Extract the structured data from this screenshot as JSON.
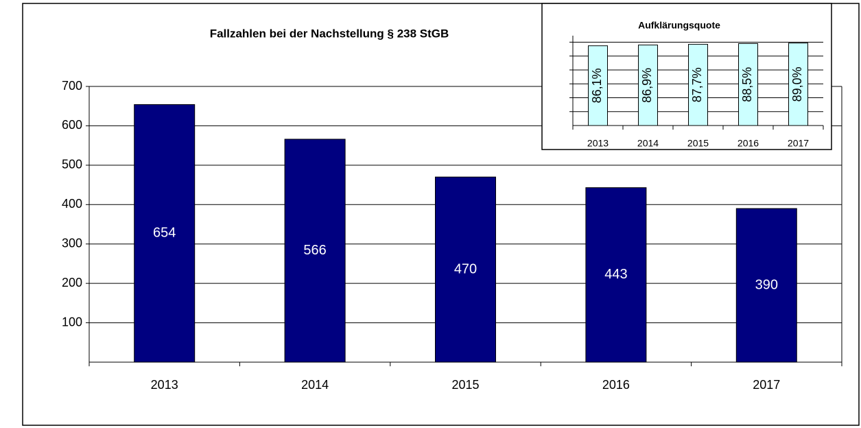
{
  "chart_data": [
    {
      "type": "bar",
      "title": "Fallzahlen bei der Nachstellung § 238 StGB",
      "categories": [
        "2013",
        "2014",
        "2015",
        "2016",
        "2017"
      ],
      "values": [
        654,
        566,
        470,
        443,
        390
      ],
      "color": "#000080",
      "ylim": [
        0,
        700
      ],
      "yticks": [
        100,
        200,
        300,
        400,
        500,
        600,
        700
      ],
      "grid": true
    },
    {
      "type": "bar",
      "title": "Aufklärungsquote",
      "categories": [
        "2013",
        "2014",
        "2015",
        "2016",
        "2017"
      ],
      "values": [
        86.1,
        86.9,
        87.7,
        88.5,
        89.0
      ],
      "value_labels": [
        "86,1%",
        "86,9%",
        "87,7%",
        "88,5%",
        "89,0%"
      ],
      "color": "#ccffff",
      "ylim": [
        0,
        97
      ],
      "yticks": [
        15,
        30,
        45,
        60,
        75,
        90
      ],
      "grid": true
    }
  ]
}
